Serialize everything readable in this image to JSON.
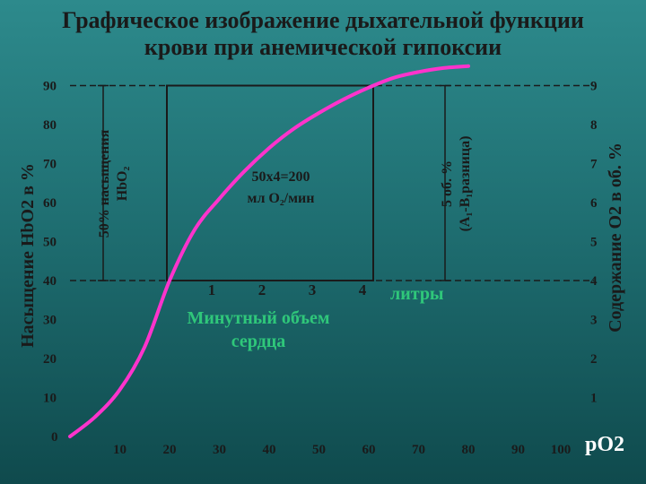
{
  "title_line1": "Графическое изображение дыхательной функции",
  "title_line2": "крови при анемической гипоксии",
  "chart_data": {
    "type": "line",
    "title": "Графическое изображение дыхательной функции крови при анемической гипоксии",
    "xlabel": "pO2",
    "ylabel": "Насыщение HbO2 в %",
    "y2label": "Содержание O2 в об. %",
    "xlim": [
      0,
      100
    ],
    "ylim": [
      0,
      100
    ],
    "x_ticks": [
      "10",
      "20",
      "30",
      "40",
      "50",
      "60",
      "70",
      "80",
      "90",
      "100"
    ],
    "y_ticks": [
      "0",
      "10",
      "20",
      "30",
      "40",
      "50",
      "60",
      "70",
      "80",
      "90"
    ],
    "y2_ticks": [
      "1",
      "2",
      "3",
      "4",
      "5",
      "6",
      "7",
      "8",
      "9"
    ],
    "series": [
      {
        "color": "#ff33cc",
        "x": [
          0,
          5,
          10,
          15,
          20,
          25,
          30,
          35,
          40,
          45,
          50,
          55,
          60,
          65,
          70,
          75,
          80
        ],
        "y": [
          0,
          5,
          12,
          23,
          40,
          53,
          61,
          68,
          74,
          79,
          83,
          86.5,
          89.5,
          92,
          93.5,
          94.5,
          95
        ]
      }
    ],
    "reference_lines": {
      "upper": 90,
      "lower": 40
    },
    "box": {
      "x": [
        20,
        60
      ],
      "y": [
        40,
        90
      ]
    },
    "minute_volume_ticks": [
      "1",
      "2",
      "3",
      "4"
    ],
    "minute_volume_unit": "литры",
    "minute_volume_label_1": "Минутный объем",
    "minute_volume_label_2": "сердца",
    "oxygen_delivery_label_1": "50х4=200",
    "oxygen_delivery_label_2": "мл O₂/мин",
    "left_bracket_label_1": "50% насыщения",
    "left_bracket_label_2": "HbO₂",
    "right_bracket_label_1": "5 об. %",
    "right_bracket_label_2": "(A₁-B₁разница)"
  },
  "colors": {
    "curve": "#ff33cc",
    "accent_text": "#2fc77a",
    "lines": "#1a1a1a"
  }
}
